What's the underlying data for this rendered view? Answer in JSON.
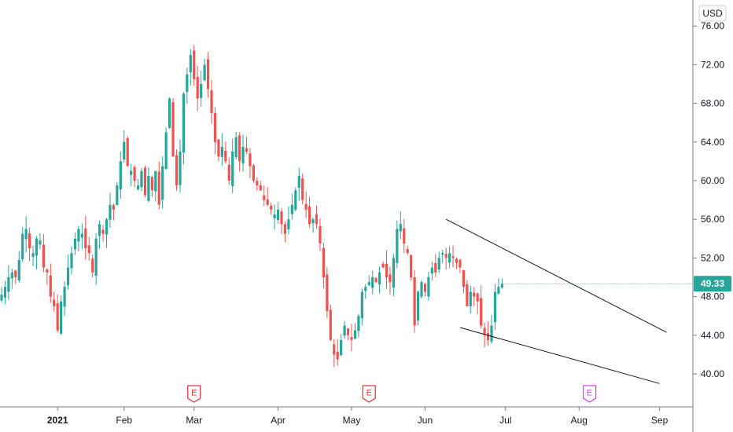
{
  "chart_data": {
    "type": "candlestick",
    "currency": "USD",
    "last_price_label": "49.33",
    "last_price": 49.33,
    "ylim": [
      36.5,
      77.5
    ],
    "y_ticks": [
      "76.00",
      "72.00",
      "68.00",
      "64.00",
      "60.00",
      "56.00",
      "52.00",
      "48.00",
      "44.00",
      "40.00"
    ],
    "x_ticks": [
      {
        "label": "2021",
        "index": 16,
        "bold": true
      },
      {
        "label": "Feb",
        "index": 35,
        "bold": false
      },
      {
        "label": "Mar",
        "index": 55,
        "bold": false
      },
      {
        "label": "Apr",
        "index": 79,
        "bold": false
      },
      {
        "label": "May",
        "index": 100,
        "bold": false
      },
      {
        "label": "Jun",
        "index": 121,
        "bold": false
      },
      {
        "label": "Jul",
        "index": 144,
        "bold": false
      },
      {
        "label": "Aug",
        "index": 165,
        "bold": false
      },
      {
        "label": "Sep",
        "index": 188,
        "bold": false
      }
    ],
    "closes": [
      48.2,
      49.0,
      50.0,
      50.5,
      50.0,
      51.8,
      54.5,
      55.0,
      53.0,
      52.5,
      54.0,
      53.8,
      51.0,
      50.5,
      48.0,
      47.0,
      44.5,
      47.5,
      49.0,
      51.0,
      52.5,
      54.0,
      55.0,
      54.5,
      53.0,
      52.5,
      50.5,
      54.0,
      55.5,
      54.5,
      56.0,
      57.5,
      57.0,
      59.5,
      62.0,
      64.0,
      61.5,
      61.0,
      60.0,
      59.5,
      61.0,
      58.5,
      60.5,
      59.0,
      61.0,
      57.5,
      61.5,
      65.0,
      68.5,
      62.5,
      59.5,
      63.0,
      69.0,
      71.0,
      73.0,
      70.5,
      68.5,
      70.0,
      72.0,
      69.5,
      67.0,
      64.0,
      62.5,
      63.5,
      62.0,
      60.0,
      63.0,
      64.5,
      62.0,
      63.5,
      63.0,
      61.5,
      60.0,
      59.5,
      59.0,
      58.0,
      57.5,
      57.0,
      56.5,
      57.0,
      55.5,
      54.5,
      56.0,
      57.5,
      59.0,
      60.5,
      58.0,
      57.0,
      55.5,
      56.0,
      55.5,
      53.5,
      50.0,
      46.5,
      43.5,
      42.0,
      41.5,
      43.5,
      45.0,
      44.0,
      43.5,
      44.5,
      46.0,
      48.5,
      49.0,
      49.5,
      50.0,
      49.5,
      50.5,
      51.0,
      50.0,
      49.5,
      52.0,
      55.0,
      55.5,
      53.5,
      52.5,
      50.0,
      45.0,
      48.5,
      49.5,
      48.5,
      50.0,
      51.0,
      50.5,
      52.0,
      52.5,
      52.0,
      52.5,
      52.0,
      51.5,
      51.0,
      49.0,
      47.0,
      48.5,
      48.0,
      47.5,
      45.0,
      44.0,
      43.5,
      45.0,
      48.5,
      49.0,
      49.33
    ],
    "events": [
      {
        "label": "E",
        "index": 55,
        "color": "#f23645"
      },
      {
        "label": "E",
        "index": 105,
        "color": "#f23645"
      },
      {
        "label": "E",
        "index": 168,
        "color": "#e040fb"
      }
    ],
    "trendlines": [
      {
        "from": {
          "index": 127,
          "price": 56.0
        },
        "to": {
          "index": 190,
          "price": 44.3
        }
      },
      {
        "from": {
          "index": 131,
          "price": 44.8
        },
        "to": {
          "index": 188,
          "price": 39.0
        }
      }
    ],
    "colors": {
      "up": "#26a69a",
      "down": "#ef5350",
      "line": "#131722",
      "axis": "#e0e3eb",
      "tag": "#26a69a"
    }
  }
}
